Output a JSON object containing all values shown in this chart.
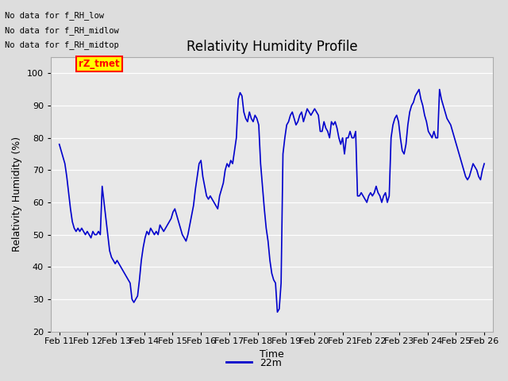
{
  "title": "Relativity Humidity Profile",
  "xlabel": "Time",
  "ylabel": "Relativity Humidity (%)",
  "ylim": [
    20,
    105
  ],
  "yticks": [
    20,
    30,
    40,
    50,
    60,
    70,
    80,
    90,
    100
  ],
  "line_color": "#0000CC",
  "line_width": 1.2,
  "legend_label": "22m",
  "legend_color": "#0000CC",
  "no_data_texts": [
    "No data for f_RH_low",
    "No data for f_RH_midlow",
    "No data for f_RH_midtop"
  ],
  "rz_tmet_text": "rZ_tmet",
  "fig_bg_color": "#dddddd",
  "plot_bg_color": "#e8e8e8",
  "xtick_labels": [
    "Feb 11",
    "Feb 12",
    "Feb 13",
    "Feb 14",
    "Feb 15",
    "Feb 16",
    "Feb 17",
    "Feb 18",
    "Feb 19",
    "Feb 20",
    "Feb 21",
    "Feb 22",
    "Feb 23",
    "Feb 24",
    "Feb 25",
    "Feb 26"
  ],
  "y_values": [
    78,
    76,
    74,
    72,
    68,
    63,
    58,
    54,
    52,
    51,
    52,
    51,
    52,
    51,
    50,
    51,
    50,
    49,
    51,
    50,
    50,
    51,
    50,
    65,
    60,
    55,
    50,
    45,
    43,
    42,
    41,
    42,
    41,
    40,
    39,
    38,
    37,
    36,
    35,
    30,
    29,
    30,
    31,
    36,
    42,
    46,
    49,
    51,
    50,
    52,
    51,
    50,
    51,
    50,
    53,
    52,
    51,
    52,
    53,
    54,
    55,
    57,
    58,
    56,
    54,
    52,
    50,
    49,
    48,
    50,
    53,
    56,
    59,
    64,
    68,
    72,
    73,
    68,
    65,
    62,
    61,
    62,
    61,
    60,
    59,
    58,
    62,
    64,
    66,
    70,
    72,
    71,
    73,
    72,
    76,
    80,
    92,
    94,
    93,
    88,
    86,
    85,
    88,
    86,
    85,
    87,
    86,
    84,
    72,
    65,
    58,
    52,
    48,
    42,
    38,
    36,
    35,
    26,
    27,
    35,
    75,
    80,
    84,
    85,
    87,
    88,
    86,
    84,
    85,
    87,
    88,
    85,
    87,
    89,
    88,
    87,
    88,
    89,
    88,
    87,
    82,
    82,
    85,
    83,
    82,
    80,
    85,
    84,
    85,
    83,
    80,
    78,
    80,
    75,
    80,
    80,
    82,
    80,
    80,
    82,
    62,
    62,
    63,
    62,
    61,
    60,
    62,
    63,
    62,
    63,
    65,
    63,
    62,
    60,
    62,
    63,
    60,
    62,
    80,
    84,
    86,
    87,
    85,
    80,
    76,
    75,
    78,
    84,
    88,
    90,
    91,
    93,
    94,
    95,
    92,
    90,
    87,
    85,
    82,
    81,
    80,
    82,
    80,
    80,
    95,
    92,
    90,
    88,
    86,
    85,
    84,
    82,
    80,
    78,
    76,
    74,
    72,
    70,
    68,
    67,
    68,
    70,
    72,
    71,
    70,
    68,
    67,
    70,
    72
  ]
}
